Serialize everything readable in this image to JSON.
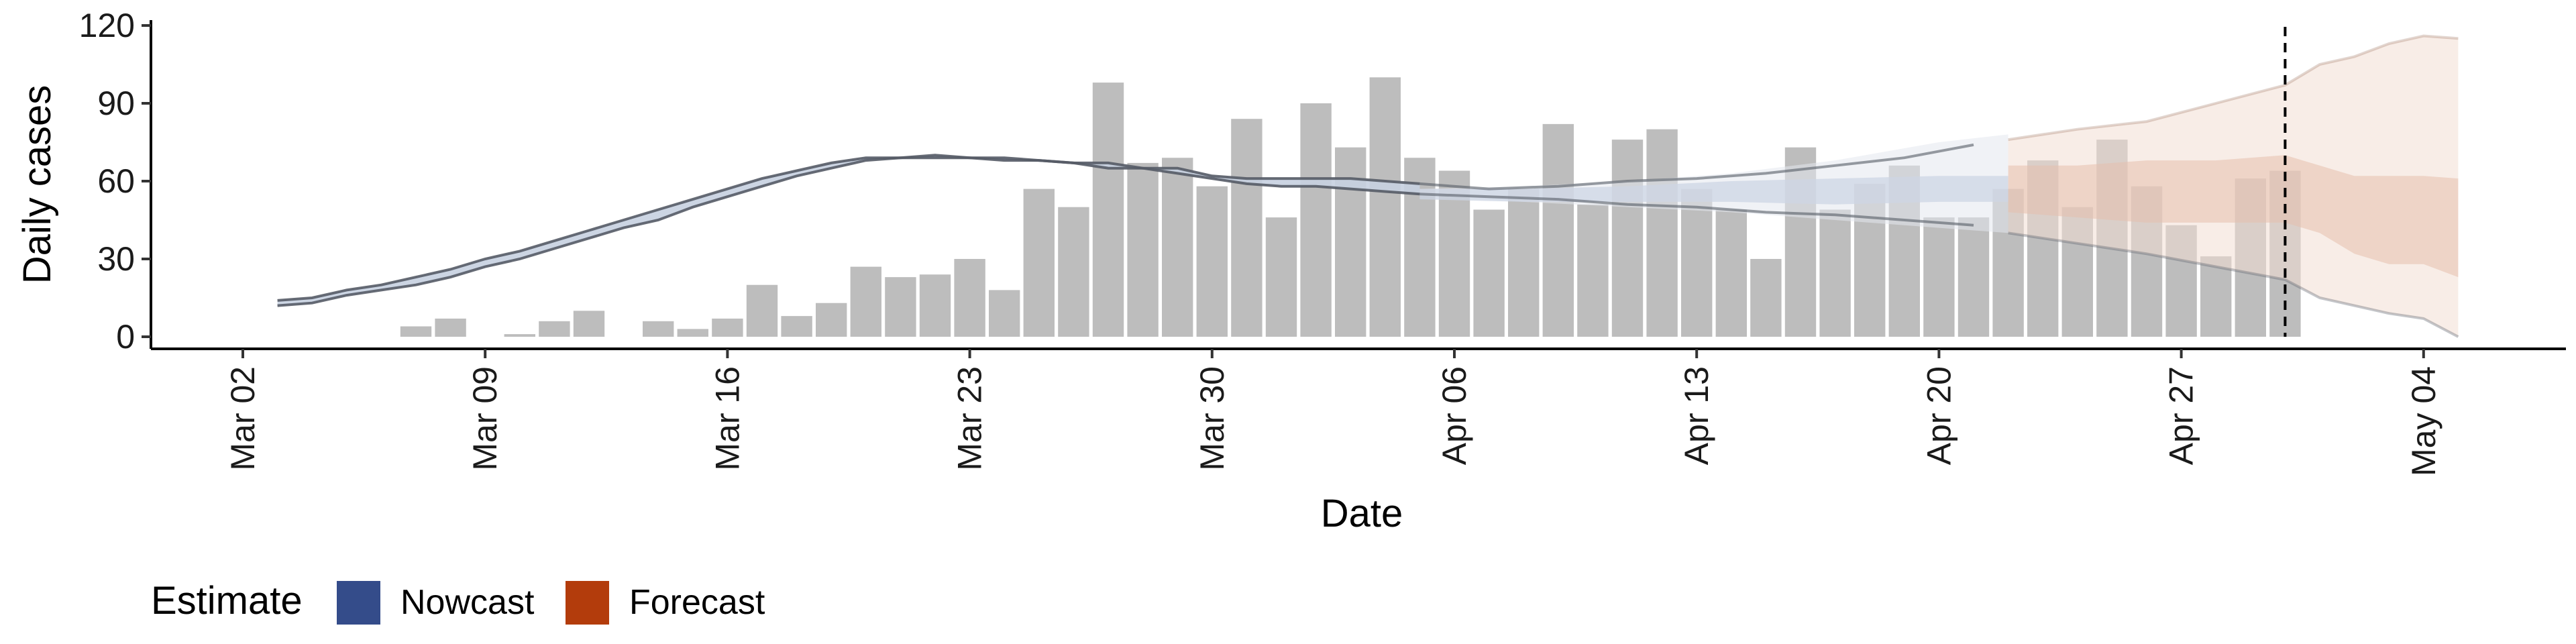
{
  "chart_data": {
    "type": "bar",
    "xlabel": "Date",
    "ylabel": "Daily cases",
    "ylim": [
      0,
      120
    ],
    "yticks": [
      0,
      30,
      60,
      90,
      120
    ],
    "x_dates": [
      "2020-03-02",
      "2020-05-05"
    ],
    "xticks": [
      "Mar 02",
      "Mar 09",
      "Mar 16",
      "Mar 23",
      "Mar 30",
      "Apr 06",
      "Apr 13",
      "Apr 20",
      "Apr 27",
      "May 04"
    ],
    "xtick_dates": [
      "2020-03-02",
      "2020-03-09",
      "2020-03-16",
      "2020-03-23",
      "2020-03-30",
      "2020-04-06",
      "2020-04-13",
      "2020-04-20",
      "2020-04-27",
      "2020-05-04"
    ],
    "reference_line_date": "2020-04-30",
    "bars": {
      "dates": [
        "2020-03-07",
        "2020-03-08",
        "2020-03-09",
        "2020-03-10",
        "2020-03-11",
        "2020-03-12",
        "2020-03-13",
        "2020-03-14",
        "2020-03-15",
        "2020-03-16",
        "2020-03-17",
        "2020-03-18",
        "2020-03-19",
        "2020-03-20",
        "2020-03-21",
        "2020-03-22",
        "2020-03-23",
        "2020-03-24",
        "2020-03-25",
        "2020-03-26",
        "2020-03-27",
        "2020-03-28",
        "2020-03-29",
        "2020-03-30",
        "2020-03-31",
        "2020-04-01",
        "2020-04-02",
        "2020-04-03",
        "2020-04-04",
        "2020-04-05",
        "2020-04-06",
        "2020-04-07",
        "2020-04-08",
        "2020-04-09",
        "2020-04-10",
        "2020-04-11",
        "2020-04-12",
        "2020-04-13",
        "2020-04-14",
        "2020-04-15",
        "2020-04-16",
        "2020-04-17",
        "2020-04-18",
        "2020-04-19",
        "2020-04-20",
        "2020-04-21",
        "2020-04-22",
        "2020-04-23",
        "2020-04-24",
        "2020-04-25",
        "2020-04-26",
        "2020-04-27",
        "2020-04-28",
        "2020-04-29",
        "2020-04-30"
      ],
      "values": [
        4,
        7,
        0,
        1,
        6,
        10,
        0,
        6,
        3,
        7,
        20,
        8,
        13,
        27,
        23,
        24,
        30,
        18,
        57,
        50,
        98,
        67,
        69,
        58,
        84,
        46,
        90,
        73,
        100,
        69,
        64,
        49,
        57,
        82,
        51,
        76,
        80,
        57,
        49,
        30,
        73,
        49,
        59,
        66,
        46,
        46,
        57,
        68,
        50,
        76,
        58,
        43,
        31,
        61,
        64
      ]
    },
    "series": [
      {
        "name": "Nowcast",
        "color": "#3a4f8c",
        "dates": [
          "2020-04-05",
          "2020-04-08",
          "2020-04-11",
          "2020-04-14",
          "2020-04-17",
          "2020-04-20",
          "2020-04-22"
        ],
        "median": [
          55,
          54,
          55,
          56,
          56,
          57,
          57
        ],
        "lower_50": [
          53,
          52,
          52,
          52,
          51,
          52,
          52
        ],
        "upper_50": [
          57,
          57,
          58,
          60,
          61,
          62,
          62
        ],
        "lower_90": [
          55,
          52,
          50,
          48,
          45,
          42,
          40
        ],
        "upper_90": [
          57,
          58,
          60,
          63,
          68,
          75,
          78
        ]
      },
      {
        "name": "Forecast",
        "color": "#b5441a",
        "dates": [
          "2020-04-22",
          "2020-04-24",
          "2020-04-26",
          "2020-04-28",
          "2020-04-30",
          "2020-05-01",
          "2020-05-02",
          "2020-05-03",
          "2020-05-04",
          "2020-05-05"
        ],
        "median": [
          55,
          55,
          55,
          56,
          57,
          55,
          52,
          48,
          46,
          45
        ],
        "lower_50": [
          48,
          46,
          44,
          44,
          44,
          40,
          32,
          28,
          28,
          23
        ],
        "upper_50": [
          66,
          66,
          68,
          68,
          70,
          66,
          62,
          62,
          62,
          61
        ],
        "lower_90": [
          40,
          36,
          32,
          27,
          22,
          15,
          12,
          9,
          7,
          0
        ],
        "upper_90": [
          76,
          80,
          83,
          90,
          97,
          105,
          108,
          113,
          116,
          115
        ]
      }
    ],
    "backcast": {
      "dates": [
        "2020-03-03",
        "2020-03-04",
        "2020-03-05",
        "2020-03-06",
        "2020-03-07",
        "2020-03-08",
        "2020-03-09",
        "2020-03-10",
        "2020-03-11",
        "2020-03-12",
        "2020-03-13",
        "2020-03-14",
        "2020-03-15",
        "2020-03-16",
        "2020-03-17",
        "2020-03-18",
        "2020-03-19",
        "2020-03-20",
        "2020-03-21",
        "2020-03-22",
        "2020-03-23",
        "2020-03-24",
        "2020-03-25",
        "2020-03-26",
        "2020-03-27",
        "2020-03-28",
        "2020-03-29",
        "2020-03-30",
        "2020-03-31",
        "2020-04-01",
        "2020-04-02",
        "2020-04-03",
        "2020-04-04",
        "2020-04-05"
      ],
      "upper": [
        14,
        15,
        18,
        20,
        23,
        26,
        30,
        33,
        37,
        41,
        45,
        49,
        53,
        57,
        61,
        64,
        67,
        69,
        69,
        70,
        69,
        69,
        68,
        67,
        67,
        65,
        65,
        62,
        61,
        61,
        61,
        61,
        60,
        59
      ],
      "lower": [
        12,
        13,
        16,
        18,
        20,
        23,
        27,
        30,
        34,
        38,
        42,
        45,
        50,
        54,
        58,
        62,
        65,
        68,
        69,
        69,
        69,
        68,
        68,
        67,
        65,
        65,
        63,
        61,
        59,
        58,
        58,
        57,
        56,
        55
      ]
    },
    "nowcast_bounds": {
      "dates": [
        "2020-04-05",
        "2020-04-07",
        "2020-04-09",
        "2020-04-11",
        "2020-04-13",
        "2020-04-15",
        "2020-04-17",
        "2020-04-19",
        "2020-04-21"
      ],
      "upper": [
        59,
        57,
        58,
        60,
        61,
        63,
        66,
        69,
        74
      ],
      "lower": [
        55,
        54,
        53,
        51,
        50,
        48,
        47,
        45,
        43
      ]
    },
    "legend": {
      "title": "Estimate",
      "items": [
        {
          "label": "Nowcast",
          "color": "#344c8a"
        },
        {
          "label": "Forecast",
          "color": "#b33c0c"
        }
      ]
    }
  }
}
